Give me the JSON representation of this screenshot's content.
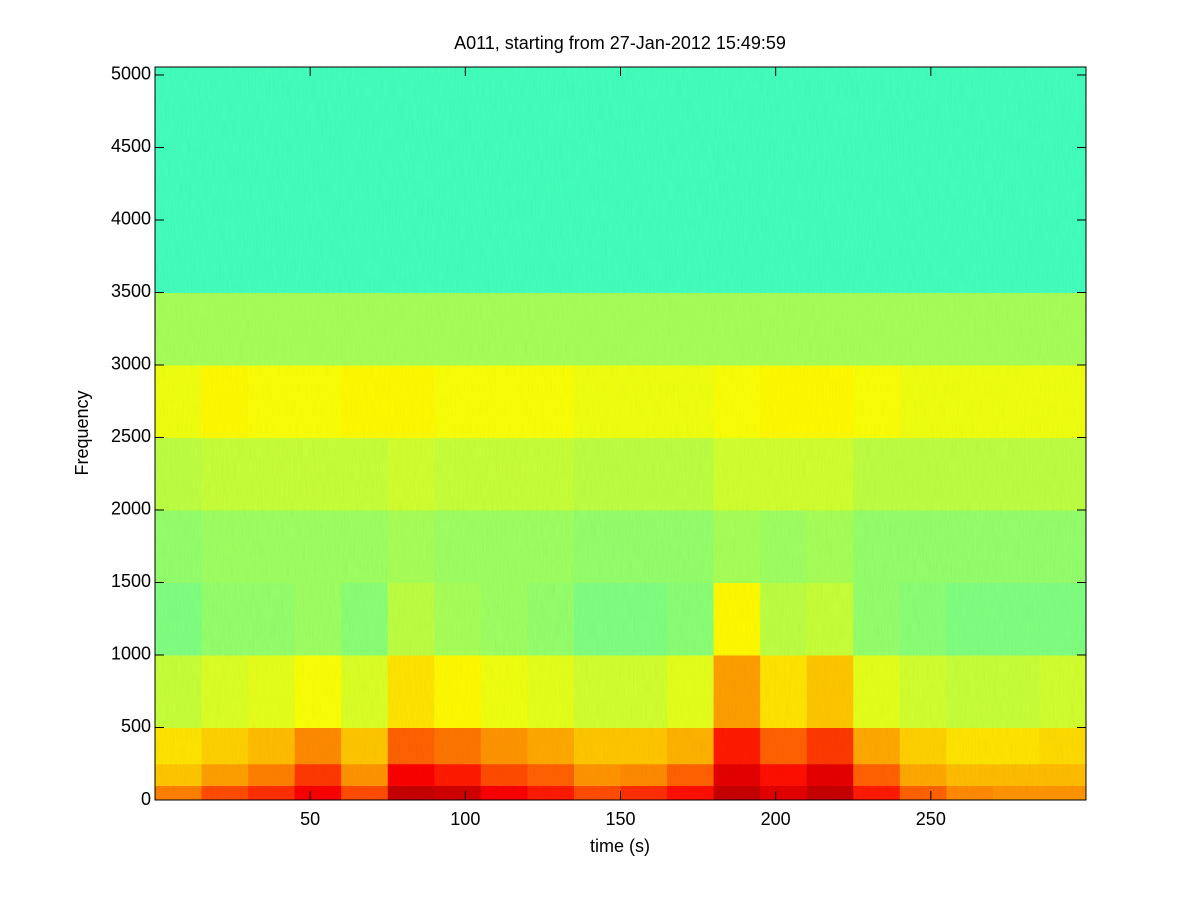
{
  "chart_data": {
    "type": "heatmap",
    "title": "A011, starting from 27-Jan-2012 15:49:59",
    "xlabel": "time (s)",
    "ylabel": "Frequency",
    "xlim": [
      0,
      300
    ],
    "ylim": [
      0,
      5055
    ],
    "xticks": [
      50,
      100,
      150,
      200,
      250
    ],
    "yticks": [
      0,
      500,
      1000,
      1500,
      2000,
      2500,
      3000,
      3500,
      4000,
      4500,
      5000
    ],
    "colormap": "jet",
    "zlim": [
      0,
      10
    ],
    "x_edges": [
      0,
      15,
      30,
      45,
      60,
      75,
      90,
      105,
      120,
      135,
      150,
      165,
      180,
      195,
      210,
      225,
      240,
      255,
      270,
      285,
      300
    ],
    "y_edges": [
      0,
      100,
      250,
      500,
      1000,
      1500,
      2000,
      2500,
      3000,
      3500,
      5055
    ],
    "z": [
      [
        7.5,
        8,
        8.3,
        8.8,
        8,
        9.3,
        9.2,
        8.8,
        8.5,
        8,
        8.3,
        8.6,
        9.3,
        9,
        9.3,
        8.5,
        7.8,
        7.4,
        7.3,
        7.3
      ],
      [
        6.8,
        7.2,
        7.5,
        8.2,
        7.3,
        8.8,
        8.5,
        8,
        7.8,
        7.3,
        7.4,
        7.8,
        9,
        8.6,
        9,
        7.8,
        7.1,
        6.9,
        6.9,
        6.9
      ],
      [
        6.5,
        6.7,
        6.9,
        7.4,
        6.8,
        7.8,
        7.6,
        7.3,
        7.1,
        6.8,
        6.8,
        7,
        8.5,
        7.8,
        8.2,
        7.1,
        6.7,
        6.5,
        6.5,
        6.6
      ],
      [
        5.7,
        5.9,
        6,
        6.2,
        5.9,
        6.5,
        6.3,
        6.1,
        6,
        5.8,
        5.8,
        6,
        7.2,
        6.5,
        6.8,
        6,
        5.8,
        5.7,
        5.7,
        5.8
      ],
      [
        5,
        5.2,
        5.2,
        5.3,
        5.1,
        5.6,
        5.4,
        5.3,
        5.2,
        5,
        5,
        5.1,
        6.3,
        5.6,
        5.7,
        5.2,
        5.1,
        5,
        5,
        5
      ],
      [
        5.2,
        5.3,
        5.3,
        5.3,
        5.3,
        5.4,
        5.3,
        5.3,
        5.3,
        5.2,
        5.2,
        5.2,
        5.4,
        5.3,
        5.4,
        5.2,
        5.2,
        5.2,
        5.2,
        5.2
      ],
      [
        5.6,
        5.7,
        5.7,
        5.7,
        5.7,
        5.8,
        5.7,
        5.7,
        5.7,
        5.6,
        5.6,
        5.6,
        5.8,
        5.8,
        5.8,
        5.6,
        5.6,
        5.6,
        5.6,
        5.6
      ],
      [
        6.1,
        6.3,
        6.2,
        6.2,
        6.3,
        6.3,
        6.2,
        6.2,
        6.2,
        6.1,
        6.1,
        6.1,
        6.2,
        6.3,
        6.3,
        6.2,
        6.1,
        6.1,
        6.1,
        6.1
      ],
      [
        5.4,
        5.4,
        5.4,
        5.4,
        5.4,
        5.4,
        5.4,
        5.4,
        5.4,
        5.4,
        5.4,
        5.4,
        5.4,
        5.4,
        5.4,
        5.4,
        5.4,
        5.4,
        5.4,
        5.4
      ],
      [
        4.4,
        4.4,
        4.4,
        4.4,
        4.4,
        4.4,
        4.4,
        4.4,
        4.4,
        4.4,
        4.4,
        4.4,
        4.4,
        4.4,
        4.4,
        4.4,
        4.4,
        4.4,
        4.4,
        4.4
      ]
    ]
  }
}
